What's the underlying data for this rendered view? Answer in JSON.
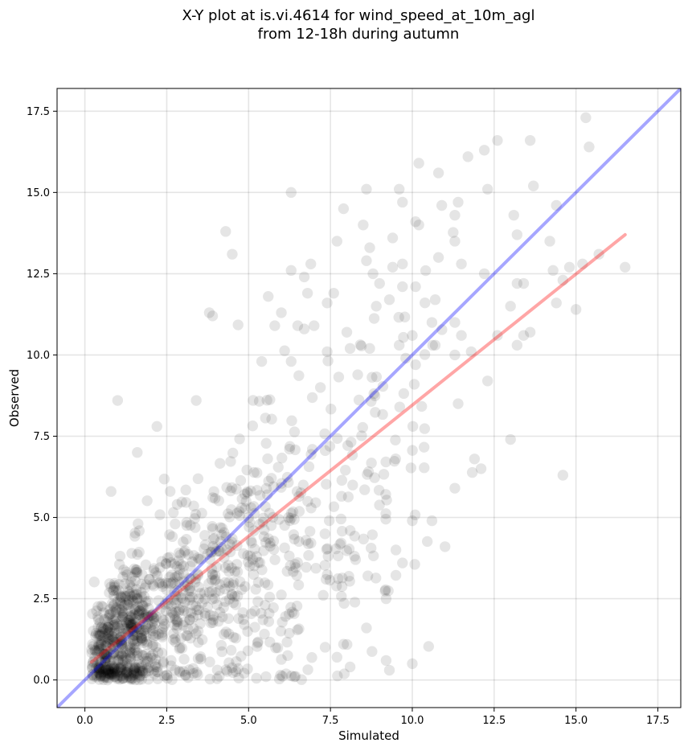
{
  "chart_data": {
    "type": "scatter",
    "title_line1": "X-Y plot at is.vi.4614 for wind_speed_at_10m_agl",
    "title_line2": "from 12-18h during autumn",
    "xlabel": "Simulated",
    "ylabel": "Observed",
    "xlim": [
      -0.85,
      18.2
    ],
    "ylim": [
      -0.85,
      18.2
    ],
    "xticks": [
      0.0,
      2.5,
      5.0,
      7.5,
      10.0,
      12.5,
      15.0,
      17.5
    ],
    "yticks": [
      0.0,
      2.5,
      5.0,
      7.5,
      10.0,
      12.5,
      15.0,
      17.5
    ],
    "xtick_labels": [
      "0.0",
      "2.5",
      "5.0",
      "7.5",
      "10.0",
      "12.5",
      "15.0",
      "17.5"
    ],
    "ytick_labels": [
      "0.0",
      "2.5",
      "5.0",
      "7.5",
      "10.0",
      "12.5",
      "15.0",
      "17.5"
    ],
    "grid": true,
    "point_color": "#000000",
    "point_opacity": 0.1,
    "identity_line": {
      "color": "#0000ff",
      "opacity": 0.35,
      "x": [
        -0.85,
        18.2
      ],
      "y": [
        -0.85,
        18.2
      ]
    },
    "fit_line": {
      "color": "#ff0000",
      "opacity": 0.35,
      "x": [
        0.2,
        16.5
      ],
      "y": [
        0.55,
        13.7
      ]
    },
    "scatter_outliers": [
      [
        15.3,
        17.3
      ],
      [
        15.4,
        16.4
      ],
      [
        13.6,
        16.6
      ],
      [
        12.6,
        16.6
      ],
      [
        12.2,
        16.3
      ],
      [
        11.7,
        16.1
      ],
      [
        10.2,
        15.9
      ],
      [
        10.8,
        15.6
      ],
      [
        13.7,
        15.2
      ],
      [
        12.3,
        15.1
      ],
      [
        9.6,
        15.1
      ],
      [
        8.6,
        15.1
      ],
      [
        6.3,
        15.0
      ],
      [
        9.7,
        14.7
      ],
      [
        11.4,
        14.7
      ],
      [
        10.9,
        14.6
      ],
      [
        14.4,
        14.6
      ],
      [
        7.9,
        14.5
      ],
      [
        11.3,
        14.3
      ],
      [
        13.1,
        14.3
      ],
      [
        10.1,
        14.1
      ],
      [
        10.2,
        14.0
      ],
      [
        8.5,
        14.0
      ],
      [
        4.3,
        13.8
      ],
      [
        13.2,
        13.7
      ],
      [
        9.4,
        13.6
      ],
      [
        7.7,
        13.5
      ],
      [
        11.3,
        13.5
      ],
      [
        14.2,
        13.5
      ],
      [
        8.7,
        13.3
      ],
      [
        4.5,
        13.1
      ],
      [
        15.7,
        13.1
      ],
      [
        10.8,
        13.0
      ],
      [
        8.6,
        12.9
      ],
      [
        6.9,
        12.8
      ],
      [
        9.7,
        12.8
      ],
      [
        11.5,
        12.8
      ],
      [
        15.2,
        12.8
      ],
      [
        16.5,
        12.7
      ],
      [
        9.4,
        12.7
      ],
      [
        14.8,
        12.7
      ],
      [
        6.3,
        12.6
      ],
      [
        14.3,
        12.6
      ],
      [
        8.8,
        12.5
      ],
      [
        12.2,
        12.5
      ],
      [
        6.7,
        12.4
      ],
      [
        14.6,
        12.3
      ],
      [
        13.2,
        12.2
      ],
      [
        9.0,
        12.2
      ],
      [
        13.4,
        12.2
      ],
      [
        9.7,
        12.1
      ],
      [
        10.1,
        12.1
      ],
      [
        6.8,
        11.9
      ],
      [
        7.6,
        11.9
      ],
      [
        5.6,
        11.8
      ],
      [
        9.3,
        11.7
      ],
      [
        10.7,
        11.7
      ],
      [
        7.4,
        11.6
      ],
      [
        14.4,
        11.6
      ],
      [
        8.9,
        11.5
      ],
      [
        13.0,
        11.5
      ],
      [
        15.0,
        11.4
      ],
      [
        6.0,
        11.3
      ],
      [
        3.8,
        11.3
      ],
      [
        3.9,
        11.2
      ],
      [
        10.6,
        11.0
      ],
      [
        11.3,
        11.0
      ],
      [
        5.8,
        10.9
      ],
      [
        6.5,
        10.9
      ],
      [
        7.0,
        10.9
      ],
      [
        6.7,
        10.8
      ],
      [
        8.0,
        10.7
      ],
      [
        13.6,
        10.7
      ],
      [
        13.4,
        10.6
      ],
      [
        12.6,
        10.6
      ],
      [
        10.0,
        10.6
      ],
      [
        11.5,
        10.6
      ],
      [
        9.6,
        10.3
      ],
      [
        13.2,
        10.3
      ],
      [
        10.7,
        10.3
      ],
      [
        8.1,
        10.2
      ],
      [
        8.7,
        10.2
      ],
      [
        7.4,
        10.1
      ],
      [
        11.8,
        10.1
      ],
      [
        11.3,
        10.0
      ],
      [
        9.8,
        9.9
      ],
      [
        6.3,
        9.8
      ],
      [
        5.4,
        9.8
      ],
      [
        10.1,
        9.7
      ],
      [
        12.3,
        9.2
      ],
      [
        13.0,
        7.4
      ],
      [
        14.6,
        6.3
      ],
      [
        11.0,
        4.1
      ],
      [
        9.5,
        4.0
      ],
      [
        9.7,
        3.6
      ],
      [
        9.2,
        2.5
      ],
      [
        9.3,
        0.3
      ],
      [
        10.0,
        0.5
      ],
      [
        9.2,
        0.6
      ],
      [
        1.0,
        8.6
      ],
      [
        1.6,
        7.0
      ],
      [
        0.8,
        5.8
      ],
      [
        3.4,
        8.6
      ],
      [
        2.2,
        7.8
      ],
      [
        11.9,
        6.8
      ],
      [
        12.1,
        6.5
      ],
      [
        11.3,
        5.9
      ],
      [
        11.4,
        8.5
      ],
      [
        10.6,
        4.9
      ],
      [
        10.0,
        4.9
      ],
      [
        8.6,
        1.6
      ],
      [
        7.7,
        0.7
      ],
      [
        8.1,
        0.4
      ],
      [
        7.9,
        1.1
      ]
    ]
  }
}
